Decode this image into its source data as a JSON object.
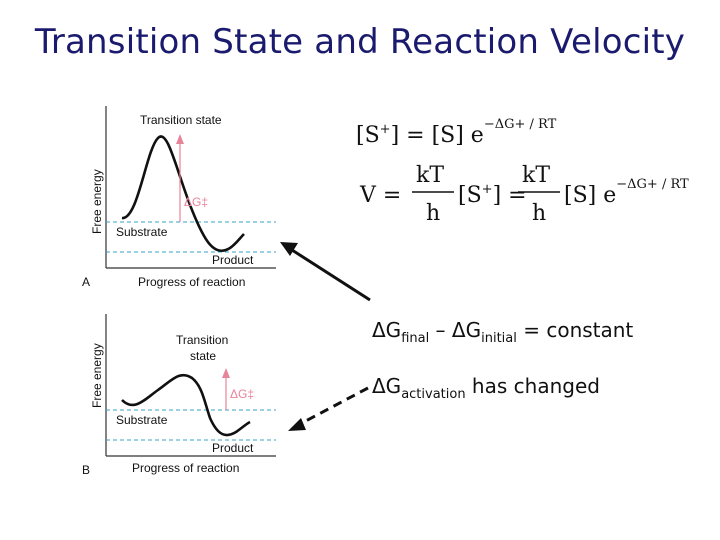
{
  "title": "Transition State and Reaction Velocity",
  "panel_a": {
    "letter": "A",
    "y_axis": "Free energy",
    "x_axis": "Progress of reaction",
    "peak_label": "Transition state",
    "delta_label": "ΔG‡",
    "substrate": "Substrate",
    "product": "Product"
  },
  "panel_b": {
    "letter": "B",
    "y_axis": "Free energy",
    "x_axis": "Progress of reaction",
    "peak_label_line1": "Transition",
    "peak_label_line2": "state",
    "delta_label": "ΔG‡",
    "substrate": "Substrate",
    "product": "Product"
  },
  "equations": {
    "eq1_lhs": "[S",
    "eq1_sup": "+",
    "eq1_mid": "] = [S] e",
    "eq1_exp": "−ΔG+ / RT",
    "eq2_v": "V =",
    "frac_num": "kT",
    "frac_den": "h",
    "eq2_s": "[S",
    "eq2_sup": "+",
    "eq2_eq": "] =",
    "eq2_s2": "[S] e",
    "eq2_exp": "−ΔG+ / RT"
  },
  "statements": {
    "s1_delta": "ΔG",
    "s1_sub1": "final",
    "s1_minus": " – ΔG",
    "s1_sub2": "initial",
    "s1_tail": " = constant",
    "s2_delta": "ΔG",
    "s2_sub": "activation",
    "s2_tail": " has changed"
  },
  "colors": {
    "title": "#1a1a6e",
    "dashed_line": "#3aa0c8",
    "delta_arrow": "#e8849a",
    "curve": "#111111"
  }
}
